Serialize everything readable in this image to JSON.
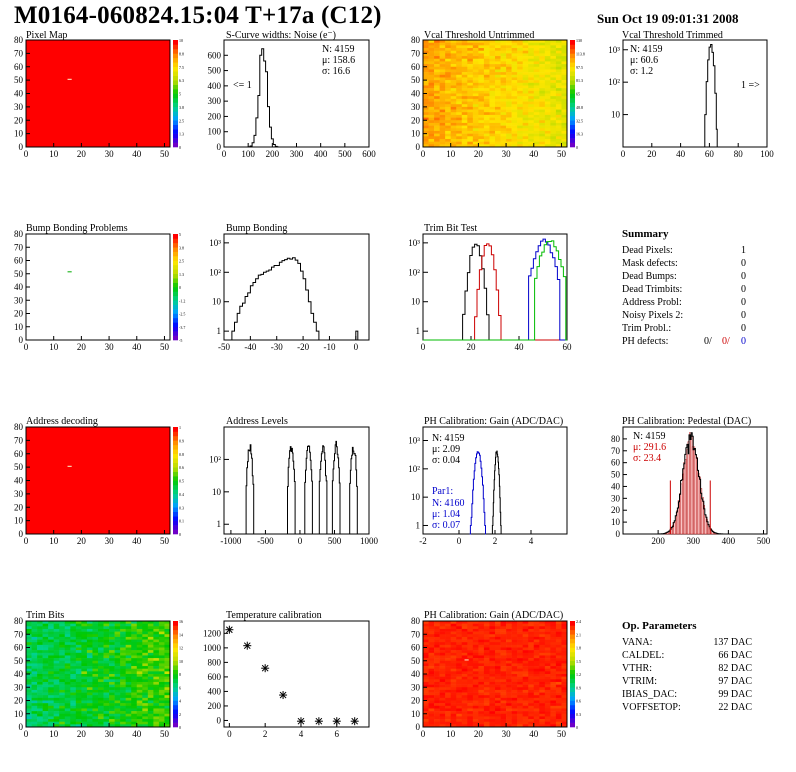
{
  "header": {
    "title": "M0164-060824.15:04 T+17a (C12)",
    "date": "Sun Oct 19 09:01:31 2008"
  },
  "panels": {
    "pixel_map": "Pixel Map",
    "scurve": "S-Curve widths: Noise (e⁻)",
    "vcal_untrimmed": "Vcal Threshold Untrimmed",
    "vcal_trimmed": "Vcal Threshold Trimmed",
    "bump_problems": "Bump Bonding Problems",
    "bump_bonding": "Bump Bonding",
    "trim_bit_test": "Trim Bit Test",
    "address_decoding": "Address decoding",
    "address_levels": "Address Levels",
    "ph_gain": "PH Calibration: Gain (ADC/DAC)",
    "ph_pedestal": "PH Calibration: Pedestal (DAC)",
    "trim_bits": "Trim Bits",
    "temperature": "Temperature calibration",
    "ph_gain_map": "PH Calibration: Gain (ADC/DAC)"
  },
  "stats": {
    "scurve": {
      "n": "N: 4159",
      "mu": "μ: 158.6",
      "sigma": "σ: 16.6",
      "underflow": "<= 1"
    },
    "vcal_trimmed": {
      "n": "N: 4159",
      "mu": "μ: 60.6",
      "sigma": "σ:  1.2",
      "overflow": "1 =>"
    },
    "ph_gain": {
      "n": "N: 4159",
      "mu": "μ: 2.09",
      "sigma": "σ: 0.04",
      "par": "Par1:",
      "n2": "N: 4160",
      "mu2": "μ: 1.04",
      "sigma2": "σ: 0.07"
    },
    "ph_pedestal": {
      "n": "N: 4159",
      "mu": "μ: 291.6",
      "sigma": "σ: 23.4"
    }
  },
  "summary": {
    "title": "Summary",
    "rows": [
      {
        "label": "Dead Pixels:",
        "value": "1"
      },
      {
        "label": "Mask defects:",
        "value": "0"
      },
      {
        "label": "Dead Bumps:",
        "value": "0"
      },
      {
        "label": "Dead Trimbits:",
        "value": "0"
      },
      {
        "label": "Address Probl:",
        "value": "0"
      },
      {
        "label": "Noisy Pixels 2:",
        "value": "0"
      },
      {
        "label": "Trim Probl.:",
        "value": "0"
      }
    ],
    "ph_label": "PH defects:",
    "ph_values": [
      "0/",
      "0/",
      "0"
    ]
  },
  "op_params": {
    "title": "Op. Parameters",
    "rows": [
      {
        "label": "VANA:",
        "value": "137 DAC"
      },
      {
        "label": "CALDEL:",
        "value": "66 DAC"
      },
      {
        "label": "VTHR:",
        "value": "82 DAC"
      },
      {
        "label": "VTRIM:",
        "value": "97 DAC"
      },
      {
        "label": "IBIAS_DAC:",
        "value": "99 DAC"
      },
      {
        "label": "VOFFSETOP:",
        "value": "22 DAC"
      }
    ]
  },
  "chart_data": [
    {
      "id": "pixel_map",
      "type": "heatmap",
      "xlim": [
        0,
        52
      ],
      "ylim": [
        0,
        80
      ],
      "xticks": [
        0,
        10,
        20,
        30,
        40,
        50
      ],
      "yticks": [
        0,
        10,
        20,
        30,
        40,
        50,
        60,
        70,
        80
      ],
      "zlim": [
        0,
        10
      ],
      "fill": "uniform_max",
      "hot_pixel": [
        15,
        50
      ]
    },
    {
      "id": "scurve",
      "type": "bar",
      "xlim": [
        0,
        600
      ],
      "ylim": [
        0,
        700
      ],
      "xticks": [
        0,
        100,
        200,
        300,
        400,
        500,
        600
      ],
      "yticks": [
        0,
        100,
        200,
        300,
        400,
        500,
        600
      ],
      "mean": 158.6,
      "sigma": 16.6,
      "peak": 650
    },
    {
      "id": "vcal_untrimmed",
      "type": "heatmap",
      "xlim": [
        0,
        52
      ],
      "ylim": [
        0,
        80
      ],
      "xticks": [
        0,
        10,
        20,
        30,
        40,
        50
      ],
      "yticks": [
        0,
        10,
        20,
        30,
        40,
        50,
        60,
        70,
        80
      ],
      "zlim": [
        0,
        130
      ],
      "fill": "threshold_gradient"
    },
    {
      "id": "vcal_trimmed",
      "type": "bar",
      "xlim": [
        0,
        100
      ],
      "ylim_log": [
        1,
        2000
      ],
      "xticks": [
        0,
        20,
        40,
        60,
        80,
        100
      ],
      "yticks": [
        "10",
        "10²",
        "10³"
      ],
      "mean": 60.6,
      "sigma": 1.2,
      "peak": 1500
    },
    {
      "id": "bump_problems",
      "type": "heatmap",
      "xlim": [
        0,
        52
      ],
      "ylim": [
        0,
        80
      ],
      "xticks": [
        0,
        10,
        20,
        30,
        40,
        50
      ],
      "yticks": [
        0,
        10,
        20,
        30,
        40,
        50,
        60,
        70,
        80
      ],
      "zlim": [
        -5,
        5
      ],
      "fill": "empty",
      "hot_pixel": [
        15,
        51
      ]
    },
    {
      "id": "bump_bonding",
      "type": "bar",
      "xlim": [
        -50,
        5
      ],
      "ylim_log": [
        0.5,
        2000
      ],
      "xticks": [
        -50,
        -40,
        -30,
        -20,
        -10,
        0
      ],
      "yticks": [
        "1",
        "10",
        "10²",
        "10³"
      ]
    },
    {
      "id": "trim_bit_test",
      "type": "line",
      "xlim": [
        0,
        60
      ],
      "ylim_log": [
        0.5,
        2000
      ],
      "xticks": [
        0,
        20,
        40,
        60
      ],
      "yticks": [
        "1",
        "10",
        "10²",
        "10³"
      ],
      "series": [
        {
          "name": "trim1",
          "color": "#000000",
          "center": 21.5
        },
        {
          "name": "trim2",
          "color": "#cc0000",
          "center": 26.5
        },
        {
          "name": "trim3",
          "color": "#0000cc",
          "center": 50
        },
        {
          "name": "trim4",
          "color": "#00bb00",
          "center": 52.5
        }
      ]
    },
    {
      "id": "address_decoding",
      "type": "heatmap",
      "xlim": [
        0,
        52
      ],
      "ylim": [
        0,
        80
      ],
      "xticks": [
        0,
        10,
        20,
        30,
        40,
        50
      ],
      "yticks": [
        0,
        10,
        20,
        30,
        40,
        50,
        60,
        70,
        80
      ],
      "zlim": [
        0,
        1
      ],
      "fill": "uniform_max",
      "hot_pixel": [
        15,
        50
      ]
    },
    {
      "id": "address_levels",
      "type": "bar",
      "xlim": [
        -1100,
        1000
      ],
      "ylim_log": [
        0.5,
        1000
      ],
      "xticks": [
        -1000,
        -500,
        0,
        500,
        1000
      ],
      "yticks": [
        "1",
        "10",
        "10²"
      ],
      "peaks": [
        -730,
        -130,
        120,
        330,
        520,
        770
      ]
    },
    {
      "id": "ph_gain",
      "type": "bar",
      "xlim": [
        -2,
        6
      ],
      "ylim_log": [
        0.5,
        3000
      ],
      "xticks": [
        -2,
        0,
        2,
        4
      ],
      "yticks": [
        "1",
        "10",
        "10²",
        "10³"
      ],
      "series": [
        {
          "name": "gain",
          "color": "#000000",
          "mean": 2.09,
          "sigma": 0.04
        },
        {
          "name": "par1",
          "color": "#0000cc",
          "mean": 1.04,
          "sigma": 0.07
        }
      ]
    },
    {
      "id": "ph_pedestal",
      "type": "bar",
      "xlim": [
        100,
        510
      ],
      "ylim": [
        0,
        90
      ],
      "xticks": [
        200,
        300,
        400,
        500
      ],
      "yticks": [
        0,
        10,
        20,
        30,
        40,
        50,
        60,
        70,
        80
      ],
      "mean": 291.6,
      "sigma": 23.4,
      "peak": 80
    },
    {
      "id": "trim_bits",
      "type": "heatmap",
      "xlim": [
        0,
        52
      ],
      "ylim": [
        0,
        80
      ],
      "xticks": [
        0,
        10,
        20,
        30,
        40,
        50
      ],
      "yticks": [
        0,
        10,
        20,
        30,
        40,
        50,
        60,
        70,
        80
      ],
      "zlim": [
        0,
        16
      ],
      "fill": "trim_noise"
    },
    {
      "id": "temperature",
      "type": "scatter",
      "xlim": [
        -0.3,
        7.8
      ],
      "ylim": [
        -90,
        1370
      ],
      "xticks": [
        0,
        2,
        4,
        6
      ],
      "yticks": [
        0,
        200,
        400,
        600,
        800,
        1000,
        1200
      ],
      "x": [
        0,
        1,
        2,
        3,
        4,
        5,
        6,
        7
      ],
      "y": [
        1250,
        1030,
        720,
        350,
        -10,
        -10,
        -10,
        -10
      ]
    },
    {
      "id": "ph_gain_map",
      "type": "heatmap",
      "xlim": [
        0,
        52
      ],
      "ylim": [
        0,
        80
      ],
      "xticks": [
        0,
        10,
        20,
        30,
        40,
        50
      ],
      "yticks": [
        0,
        10,
        20,
        30,
        40,
        50,
        60,
        70,
        80
      ],
      "zlim": [
        0,
        2.4
      ],
      "fill": "red_noise",
      "hot_pixel": [
        15,
        50
      ]
    }
  ]
}
